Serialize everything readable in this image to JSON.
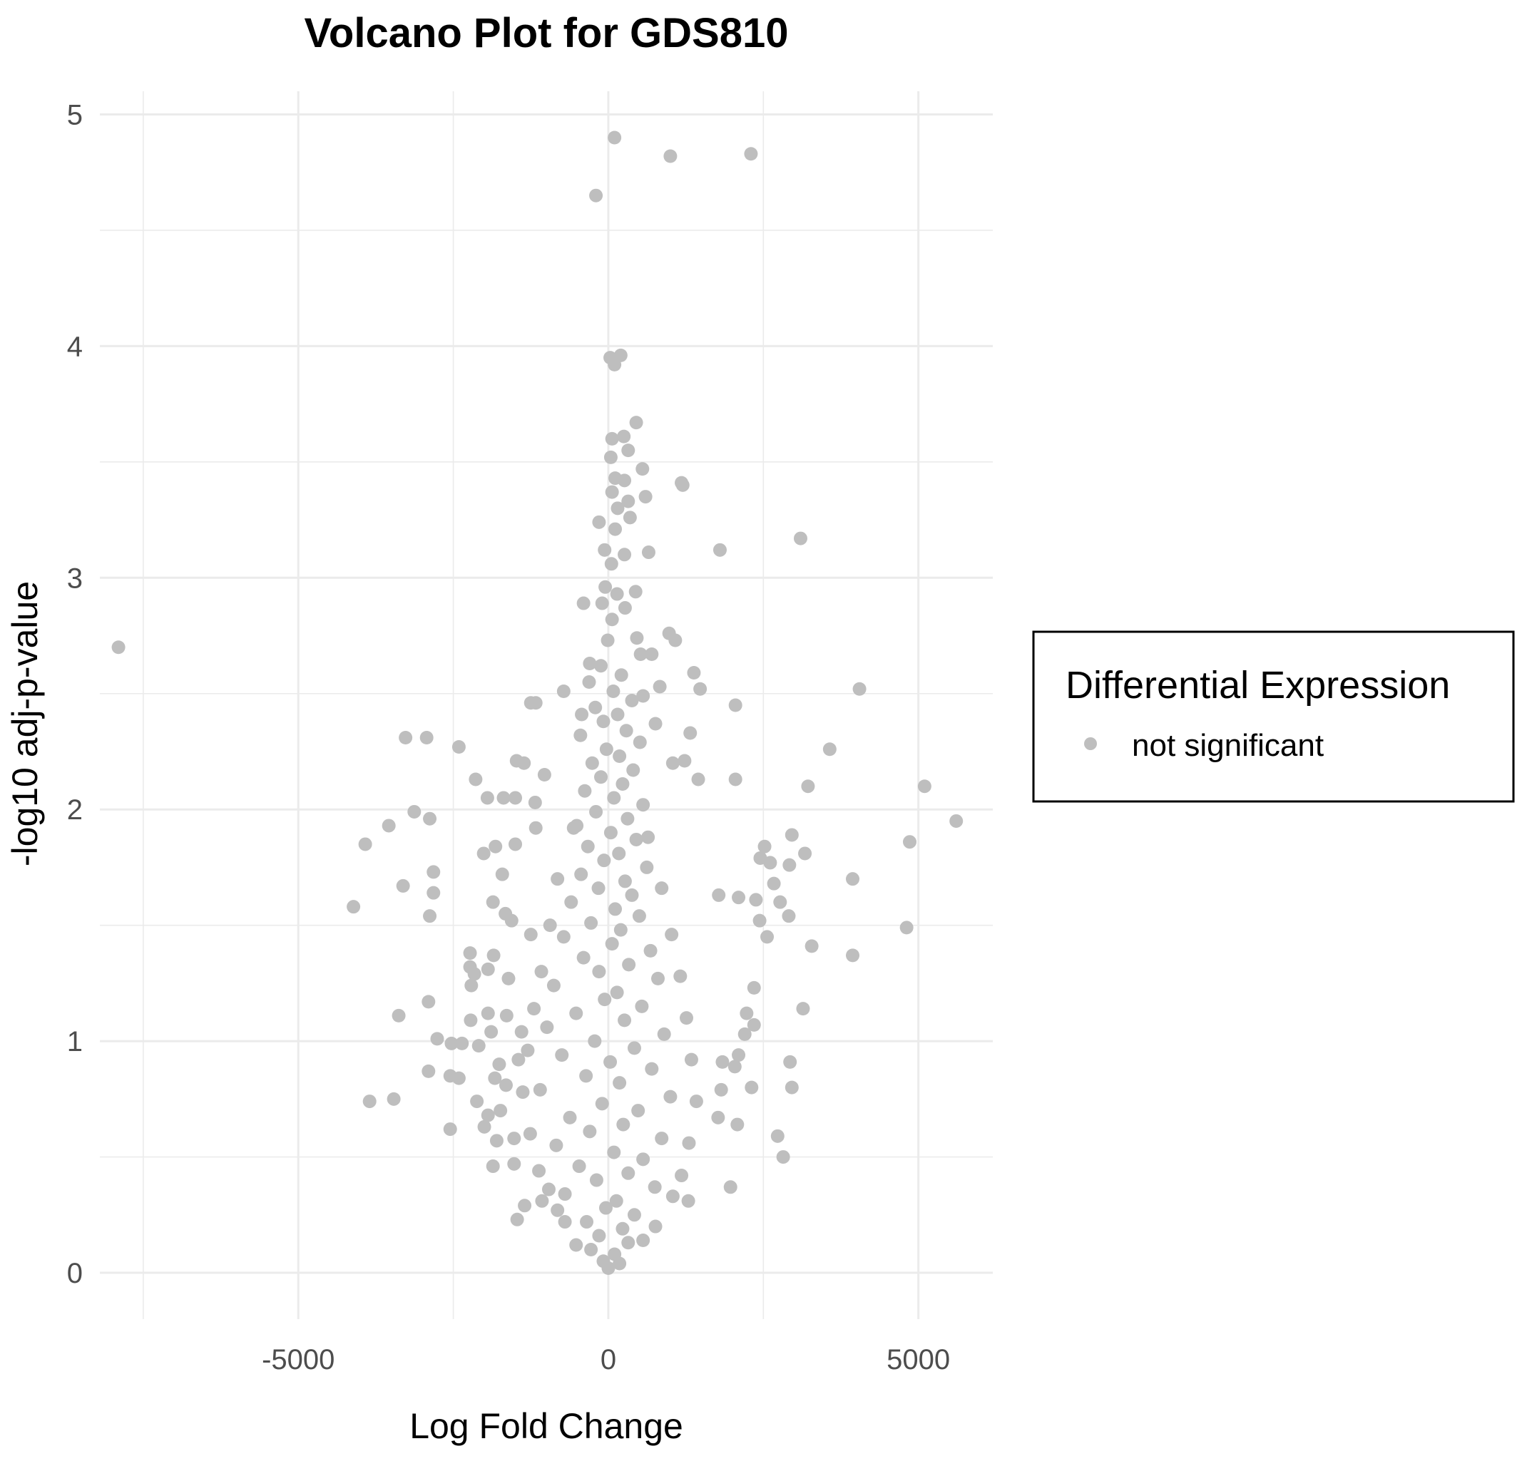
{
  "chart_data": {
    "type": "scatter",
    "title": "Volcano Plot for GDS810",
    "xlabel": "Log Fold Change",
    "ylabel": "-log10 adj-p-value",
    "xlim": [
      -8200,
      6200
    ],
    "ylim": [
      -0.2,
      5.1
    ],
    "x_ticks": [
      -5000,
      0,
      5000
    ],
    "x_tick_labels": [
      "-5000",
      "0",
      "5000"
    ],
    "y_ticks": [
      0,
      1,
      2,
      3,
      4,
      5
    ],
    "y_tick_labels": [
      "0",
      "1",
      "2",
      "3",
      "4",
      "5"
    ],
    "grid": true,
    "legend_position": "right",
    "legend_title": "Differential Expression",
    "point_color": "#bebebe",
    "series": [
      {
        "name": "not significant",
        "color": "#bebebe",
        "points": [
          [
            100,
            4.9
          ],
          [
            1000,
            4.82
          ],
          [
            2300,
            4.83
          ],
          [
            -200,
            4.65
          ],
          [
            30,
            3.95
          ],
          [
            200,
            3.96
          ],
          [
            100,
            3.92
          ],
          [
            450,
            3.67
          ],
          [
            60,
            3.6
          ],
          [
            250,
            3.61
          ],
          [
            320,
            3.55
          ],
          [
            550,
            3.47
          ],
          [
            40,
            3.52
          ],
          [
            110,
            3.43
          ],
          [
            260,
            3.42
          ],
          [
            1180,
            3.41
          ],
          [
            1200,
            3.4
          ],
          [
            60,
            3.37
          ],
          [
            600,
            3.35
          ],
          [
            320,
            3.33
          ],
          [
            150,
            3.3
          ],
          [
            350,
            3.26
          ],
          [
            -150,
            3.24
          ],
          [
            110,
            3.21
          ],
          [
            3100,
            3.17
          ],
          [
            -60,
            3.12
          ],
          [
            1800,
            3.12
          ],
          [
            650,
            3.11
          ],
          [
            260,
            3.1
          ],
          [
            50,
            3.06
          ],
          [
            440,
            2.94
          ],
          [
            140,
            2.93
          ],
          [
            -50,
            2.96
          ],
          [
            -400,
            2.89
          ],
          [
            -100,
            2.89
          ],
          [
            270,
            2.87
          ],
          [
            60,
            2.82
          ],
          [
            980,
            2.76
          ],
          [
            1080,
            2.73
          ],
          [
            -10,
            2.73
          ],
          [
            460,
            2.74
          ],
          [
            700,
            2.67
          ],
          [
            520,
            2.67
          ],
          [
            -7900,
            2.7
          ],
          [
            1380,
            2.59
          ],
          [
            -300,
            2.63
          ],
          [
            4050,
            2.52
          ],
          [
            1480,
            2.52
          ],
          [
            -720,
            2.51
          ],
          [
            830,
            2.53
          ],
          [
            -1170,
            2.46
          ],
          [
            2050,
            2.45
          ],
          [
            560,
            2.49
          ],
          [
            -430,
            2.41
          ],
          [
            -1250,
            2.46
          ],
          [
            760,
            2.37
          ],
          [
            -3270,
            2.31
          ],
          [
            -2930,
            2.31
          ],
          [
            -2410,
            2.27
          ],
          [
            1320,
            2.33
          ],
          [
            3570,
            2.26
          ],
          [
            -1480,
            2.21
          ],
          [
            -1360,
            2.2
          ],
          [
            1040,
            2.2
          ],
          [
            1230,
            2.21
          ],
          [
            -2140,
            2.13
          ],
          [
            -1030,
            2.15
          ],
          [
            -1950,
            2.05
          ],
          [
            -1690,
            2.05
          ],
          [
            2050,
            2.13
          ],
          [
            5100,
            2.1
          ],
          [
            3220,
            2.1
          ],
          [
            1450,
            2.13
          ],
          [
            -1180,
            2.03
          ],
          [
            -1500,
            2.05
          ],
          [
            -3130,
            1.99
          ],
          [
            -2880,
            1.96
          ],
          [
            -3540,
            1.93
          ],
          [
            -1170,
            1.92
          ],
          [
            5610,
            1.95
          ],
          [
            2960,
            1.89
          ],
          [
            -3920,
            1.85
          ],
          [
            -1820,
            1.84
          ],
          [
            -1500,
            1.85
          ],
          [
            -2010,
            1.81
          ],
          [
            4860,
            1.86
          ],
          [
            2520,
            1.84
          ],
          [
            3170,
            1.81
          ],
          [
            2450,
            1.79
          ],
          [
            -2820,
            1.73
          ],
          [
            -1710,
            1.72
          ],
          [
            3940,
            1.7
          ],
          [
            2920,
            1.76
          ],
          [
            2610,
            1.77
          ],
          [
            -3310,
            1.67
          ],
          [
            -2820,
            1.64
          ],
          [
            1780,
            1.63
          ],
          [
            2670,
            1.68
          ],
          [
            -4110,
            1.58
          ],
          [
            -1860,
            1.6
          ],
          [
            2100,
            1.62
          ],
          [
            2380,
            1.61
          ],
          [
            2770,
            1.6
          ],
          [
            -2880,
            1.54
          ],
          [
            2910,
            1.54
          ],
          [
            -1660,
            1.55
          ],
          [
            -1560,
            1.52
          ],
          [
            2440,
            1.52
          ],
          [
            4810,
            1.49
          ],
          [
            -1250,
            1.46
          ],
          [
            3280,
            1.41
          ],
          [
            2560,
            1.45
          ],
          [
            -2230,
            1.38
          ],
          [
            3940,
            1.37
          ],
          [
            -1850,
            1.37
          ],
          [
            -2230,
            1.32
          ],
          [
            -1940,
            1.31
          ],
          [
            -2160,
            1.29
          ],
          [
            -1610,
            1.27
          ],
          [
            2350,
            1.23
          ],
          [
            -2210,
            1.24
          ],
          [
            -2900,
            1.17
          ],
          [
            3140,
            1.14
          ],
          [
            -3380,
            1.11
          ],
          [
            -1940,
            1.12
          ],
          [
            -1640,
            1.11
          ],
          [
            2230,
            1.12
          ],
          [
            -2220,
            1.09
          ],
          [
            2350,
            1.07
          ],
          [
            -1890,
            1.04
          ],
          [
            -1400,
            1.04
          ],
          [
            -2760,
            1.01
          ],
          [
            2200,
            1.03
          ],
          [
            -2530,
            0.99
          ],
          [
            -2090,
            0.98
          ],
          [
            -2360,
            0.99
          ],
          [
            2100,
            0.94
          ],
          [
            2930,
            0.91
          ],
          [
            1840,
            0.91
          ],
          [
            -1760,
            0.9
          ],
          [
            2040,
            0.89
          ],
          [
            -1450,
            0.92
          ],
          [
            -2900,
            0.87
          ],
          [
            -2550,
            0.85
          ],
          [
            -2410,
            0.84
          ],
          [
            -1830,
            0.84
          ],
          [
            -1650,
            0.81
          ],
          [
            2310,
            0.8
          ],
          [
            2960,
            0.8
          ],
          [
            1820,
            0.79
          ],
          [
            -3850,
            0.74
          ],
          [
            -3460,
            0.75
          ],
          [
            -2120,
            0.74
          ],
          [
            -1740,
            0.7
          ],
          [
            -1940,
            0.68
          ],
          [
            1770,
            0.67
          ],
          [
            -2550,
            0.62
          ],
          [
            2080,
            0.64
          ],
          [
            -2000,
            0.63
          ],
          [
            2730,
            0.59
          ],
          [
            -1520,
            0.58
          ],
          [
            -1800,
            0.57
          ],
          [
            2820,
            0.5
          ],
          [
            1970,
            0.37
          ],
          [
            -1860,
            0.46
          ],
          [
            -1520,
            0.47
          ],
          [
            -1350,
            0.29
          ],
          [
            -1470,
            0.23
          ],
          [
            -1070,
            0.31
          ],
          [
            -820,
            0.27
          ],
          [
            1290,
            0.31
          ],
          [
            -120,
            2.62
          ],
          [
            210,
            2.58
          ],
          [
            -310,
            2.55
          ],
          [
            80,
            2.51
          ],
          [
            380,
            2.47
          ],
          [
            -210,
            2.44
          ],
          [
            150,
            2.41
          ],
          [
            -80,
            2.38
          ],
          [
            290,
            2.34
          ],
          [
            -450,
            2.32
          ],
          [
            510,
            2.29
          ],
          [
            -30,
            2.26
          ],
          [
            180,
            2.23
          ],
          [
            -260,
            2.2
          ],
          [
            400,
            2.17
          ],
          [
            -120,
            2.14
          ],
          [
            230,
            2.11
          ],
          [
            -380,
            2.08
          ],
          [
            90,
            2.05
          ],
          [
            560,
            2.02
          ],
          [
            -200,
            1.99
          ],
          [
            310,
            1.96
          ],
          [
            -510,
            1.93
          ],
          [
            40,
            1.9
          ],
          [
            450,
            1.87
          ],
          [
            -330,
            1.84
          ],
          [
            170,
            1.81
          ],
          [
            -70,
            1.78
          ],
          [
            620,
            1.75
          ],
          [
            -440,
            1.72
          ],
          [
            270,
            1.69
          ],
          [
            -160,
            1.66
          ],
          [
            380,
            1.63
          ],
          [
            -600,
            1.6
          ],
          [
            110,
            1.57
          ],
          [
            500,
            1.54
          ],
          [
            -280,
            1.51
          ],
          [
            200,
            1.48
          ],
          [
            -720,
            1.45
          ],
          [
            60,
            1.42
          ],
          [
            680,
            1.39
          ],
          [
            -400,
            1.36
          ],
          [
            330,
            1.33
          ],
          [
            -150,
            1.3
          ],
          [
            800,
            1.27
          ],
          [
            -880,
            1.24
          ],
          [
            140,
            1.21
          ],
          [
            -60,
            1.18
          ],
          [
            540,
            1.15
          ],
          [
            -520,
            1.12
          ],
          [
            260,
            1.09
          ],
          [
            -990,
            1.06
          ],
          [
            900,
            1.03
          ],
          [
            -220,
            1.0
          ],
          [
            420,
            0.97
          ],
          [
            -750,
            0.94
          ],
          [
            30,
            0.91
          ],
          [
            700,
            0.88
          ],
          [
            -360,
            0.85
          ],
          [
            180,
            0.82
          ],
          [
            -1100,
            0.79
          ],
          [
            1000,
            0.76
          ],
          [
            -100,
            0.73
          ],
          [
            480,
            0.7
          ],
          [
            -620,
            0.67
          ],
          [
            240,
            0.64
          ],
          [
            -300,
            0.61
          ],
          [
            860,
            0.58
          ],
          [
            -840,
            0.55
          ],
          [
            90,
            0.52
          ],
          [
            560,
            0.49
          ],
          [
            -470,
            0.46
          ],
          [
            320,
            0.43
          ],
          [
            -190,
            0.4
          ],
          [
            750,
            0.37
          ],
          [
            -700,
            0.34
          ],
          [
            130,
            0.31
          ],
          [
            -40,
            0.28
          ],
          [
            420,
            0.25
          ],
          [
            -350,
            0.22
          ],
          [
            230,
            0.19
          ],
          [
            -150,
            0.16
          ],
          [
            320,
            0.13
          ],
          [
            -280,
            0.1
          ],
          [
            100,
            0.08
          ],
          [
            -80,
            0.05
          ],
          [
            180,
            0.04
          ],
          [
            0,
            0.02
          ],
          [
            -560,
            1.92
          ],
          [
            640,
            1.88
          ],
          [
            -820,
            1.7
          ],
          [
            860,
            1.66
          ],
          [
            -940,
            1.5
          ],
          [
            1020,
            1.46
          ],
          [
            -1080,
            1.3
          ],
          [
            1160,
            1.28
          ],
          [
            -1200,
            1.14
          ],
          [
            1260,
            1.1
          ],
          [
            -1300,
            0.96
          ],
          [
            1340,
            0.92
          ],
          [
            -1380,
            0.78
          ],
          [
            1420,
            0.74
          ],
          [
            -1260,
            0.6
          ],
          [
            1300,
            0.56
          ],
          [
            -1120,
            0.44
          ],
          [
            1180,
            0.42
          ],
          [
            -960,
            0.36
          ],
          [
            1040,
            0.33
          ],
          [
            -700,
            0.22
          ],
          [
            760,
            0.2
          ],
          [
            -520,
            0.12
          ],
          [
            560,
            0.14
          ]
        ]
      }
    ]
  }
}
